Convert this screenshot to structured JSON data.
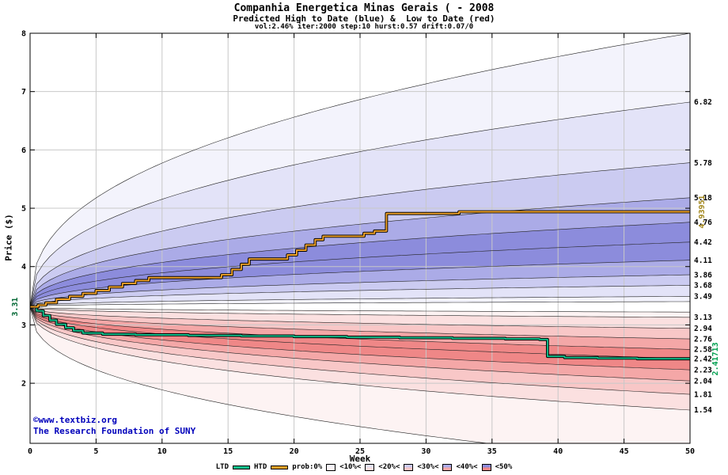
{
  "header": {
    "title": "Companhia Energetica Minas Gerais ( - 2008",
    "subtitle": "Predicted High to Date (blue) &  Low to Date (red)",
    "params": "vol:2.46% iter:2000 step:10 hurst:0.57 drift:0.07/0"
  },
  "watermark": {
    "line1": "©www.textbiz.org",
    "line2": "The Research Foundation of SUNY",
    "color": "#0000bb"
  },
  "chart_data": {
    "type": "area",
    "title": "Companhia Energetica Minas Gerais ( - 2008",
    "subtitle": "Predicted High to Date (blue) &  Low to Date (red)",
    "xlabel": "Week",
    "ylabel": "Price ($)",
    "xlim": [
      0,
      50
    ],
    "ylim": [
      0.97,
      8.0
    ],
    "x_ticks": [
      0,
      5,
      10,
      15,
      20,
      25,
      30,
      35,
      40,
      45,
      50
    ],
    "y_ticks": [
      2,
      3,
      4,
      5,
      6,
      7,
      8
    ],
    "grid": true,
    "start_week": 0,
    "start_price": 3.31,
    "start_label": "3.31",
    "start_label_color": "#006633",
    "spread_exponent": 0.4,
    "high_percentiles": {
      "pcts": [
        0,
        10,
        20,
        30,
        40,
        50,
        60,
        70,
        80,
        90,
        100
      ],
      "end_values": [
        3.4,
        3.49,
        3.68,
        3.86,
        4.11,
        4.42,
        4.76,
        5.18,
        5.78,
        6.82,
        8.0
      ]
    },
    "low_percentiles": {
      "pcts": [
        100,
        90,
        80,
        70,
        60,
        50,
        40,
        30,
        20,
        10,
        0
      ],
      "end_values": [
        3.22,
        3.13,
        2.94,
        2.76,
        2.58,
        2.42,
        2.23,
        2.04,
        1.81,
        1.54,
        0.6
      ]
    },
    "right_axis_labels": [
      "6.82",
      "5.78",
      "5.18",
      "4.76",
      "4.42",
      "4.11",
      "3.86",
      "3.68",
      "3.49",
      "3.13",
      "2.94",
      "2.76",
      "2.58",
      "2.42",
      "2.23",
      "2.04",
      "1.81",
      "1.54"
    ],
    "htd": {
      "label": "HTD",
      "color": "#f0a228",
      "final_label": "4.93951",
      "final_label_color": "#a08418",
      "steps": [
        [
          0,
          3.31
        ],
        [
          0.6,
          3.34
        ],
        [
          1.2,
          3.38
        ],
        [
          2,
          3.44
        ],
        [
          3,
          3.49
        ],
        [
          4,
          3.54
        ],
        [
          5,
          3.59
        ],
        [
          6,
          3.65
        ],
        [
          7,
          3.71
        ],
        [
          8,
          3.76
        ],
        [
          9,
          3.81
        ],
        [
          14.5,
          3.86
        ],
        [
          15.3,
          3.95
        ],
        [
          16,
          4.04
        ],
        [
          16.6,
          4.13
        ],
        [
          19.5,
          4.2
        ],
        [
          20.2,
          4.28
        ],
        [
          20.9,
          4.37
        ],
        [
          21.6,
          4.46
        ],
        [
          22.2,
          4.52
        ],
        [
          25.3,
          4.57
        ],
        [
          26.1,
          4.61
        ],
        [
          27,
          4.91
        ],
        [
          32.5,
          4.94
        ],
        [
          50,
          4.94
        ]
      ]
    },
    "ltd": {
      "label": "LTD",
      "color": "#0fc08c",
      "final_label": "2.41713",
      "final_label_color": "#00a050",
      "steps": [
        [
          0,
          3.31
        ],
        [
          0.5,
          3.24
        ],
        [
          1,
          3.16
        ],
        [
          1.5,
          3.08
        ],
        [
          2,
          3.01
        ],
        [
          2.7,
          2.95
        ],
        [
          3.3,
          2.9
        ],
        [
          4,
          2.86
        ],
        [
          5.5,
          2.84
        ],
        [
          8,
          2.83
        ],
        [
          12,
          2.82
        ],
        [
          16,
          2.81
        ],
        [
          20,
          2.8
        ],
        [
          24,
          2.79
        ],
        [
          28,
          2.78
        ],
        [
          32,
          2.77
        ],
        [
          36,
          2.76
        ],
        [
          38.6,
          2.75
        ],
        [
          39.2,
          2.46
        ],
        [
          40.5,
          2.44
        ],
        [
          43,
          2.43
        ],
        [
          46,
          2.42
        ],
        [
          50,
          2.42
        ]
      ]
    },
    "band_colors": {
      "blue": [
        "#f3f3fc",
        "#e3e3f8",
        "#cbcbf1",
        "#ababe7",
        "#8c8cdc"
      ],
      "red": [
        "#fdf3f3",
        "#fbe0e0",
        "#f8c7c7",
        "#f4a7a7",
        "#ef8787"
      ]
    },
    "boundary_line_color": "#222222",
    "grid_color": "#c8c8c8"
  },
  "legend": {
    "ltd_label": "LTD",
    "htd_label": "HTD",
    "prob_label": "prob:0%",
    "items": [
      {
        "label": "<10%<"
      },
      {
        "label": "<20%<"
      },
      {
        "label": "<30%<"
      },
      {
        "label": "<40%<"
      },
      {
        "label": "<50%"
      }
    ]
  }
}
